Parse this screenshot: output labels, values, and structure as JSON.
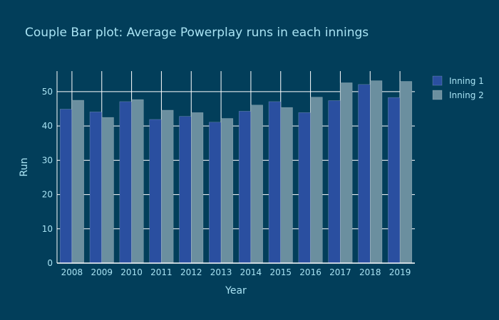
{
  "colors": {
    "background": "#023e5a",
    "grid": "#ffffff",
    "text": "#a9e3f3"
  },
  "chart_data": {
    "type": "bar",
    "title": "Couple Bar plot: Average Powerplay runs in each innings",
    "xlabel": "Year",
    "ylabel": "Run",
    "categories": [
      "2008",
      "2009",
      "2010",
      "2011",
      "2012",
      "2013",
      "2014",
      "2015",
      "2016",
      "2017",
      "2018",
      "2019"
    ],
    "series": [
      {
        "name": "Inning 1",
        "color": "#2a4fa0",
        "values": [
          44.9,
          44.1,
          47.1,
          41.9,
          42.8,
          41.1,
          44.3,
          47.1,
          43.9,
          47.4,
          52.1,
          48.3
        ]
      },
      {
        "name": "Inning 2",
        "color": "#6b8f9f",
        "values": [
          47.5,
          42.5,
          47.7,
          44.6,
          43.9,
          42.2,
          46.1,
          45.4,
          48.4,
          52.6,
          53.2,
          53.0
        ]
      }
    ],
    "ylim": [
      0,
      56
    ],
    "yticks": [
      0,
      10,
      20,
      30,
      40,
      50
    ],
    "legend_position": "top-right",
    "grid": true
  }
}
